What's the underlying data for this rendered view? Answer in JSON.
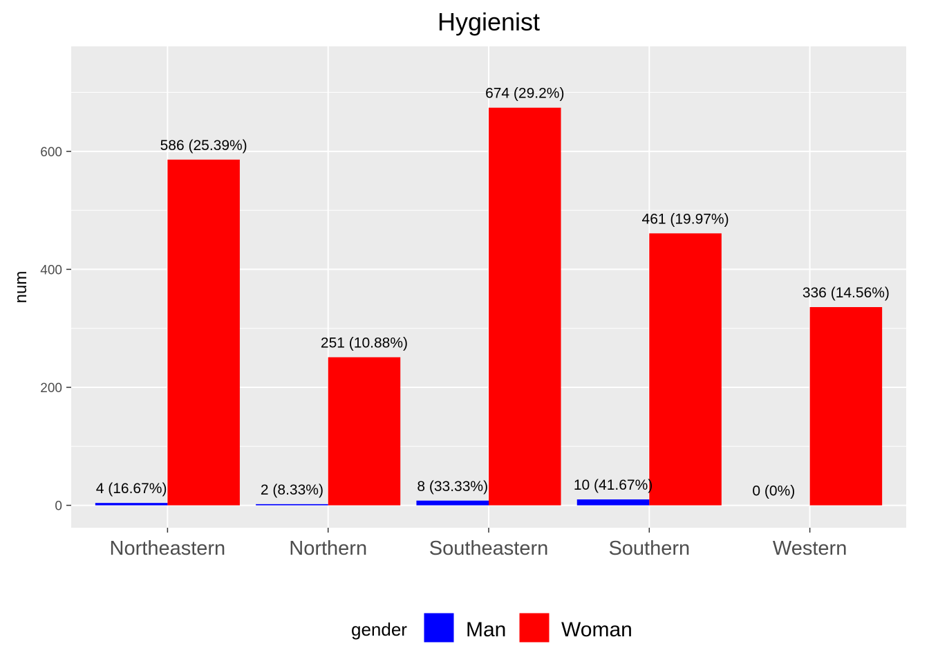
{
  "chart_data": {
    "type": "bar",
    "title": "Hygienist",
    "xlabel": "",
    "ylabel": "num",
    "categories": [
      "Northeastern",
      "Northern",
      "Southeastern",
      "Southern",
      "Western"
    ],
    "series": [
      {
        "name": "Man",
        "color": "#0000ff",
        "values": [
          4,
          2,
          8,
          10,
          0
        ],
        "labels": [
          "4 (16.67%)",
          "2 (8.33%)",
          "8 (33.33%)",
          "10 (41.67%)",
          "0 (0%)"
        ]
      },
      {
        "name": "Woman",
        "color": "#ff0000",
        "values": [
          586,
          251,
          674,
          461,
          336
        ],
        "labels": [
          "586 (25.39%)",
          "251 (10.88%)",
          "674 (29.2%)",
          "461 (19.97%)",
          "336 (14.56%)"
        ]
      }
    ],
    "ylim": [
      -38,
      778
    ],
    "yticks": [
      0,
      200,
      400,
      600
    ],
    "grid": true,
    "legend": {
      "title": "gender",
      "placement": "bottom"
    }
  }
}
